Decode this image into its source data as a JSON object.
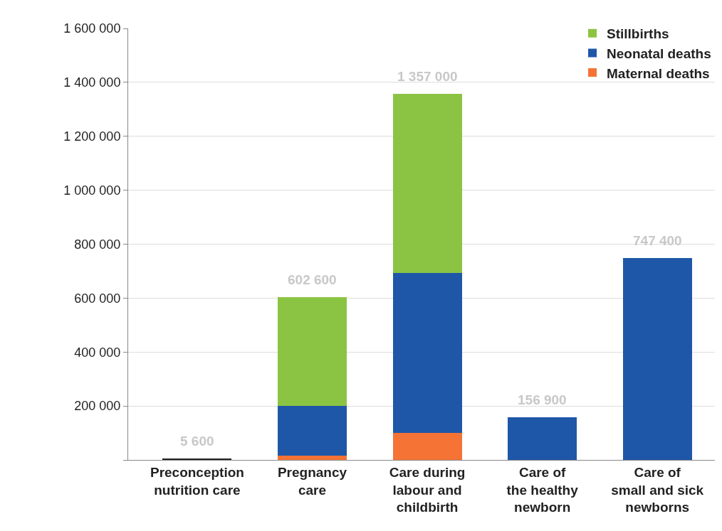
{
  "chart_data": {
    "type": "bar",
    "stacked": true,
    "categories": [
      "Preconception\nnutrition care",
      "Pregnancy\ncare",
      "Care during\nlabour and\nchildbirth",
      "Care of\nthe healthy\nnewborn",
      "Care of\nsmall and sick\nnewborns"
    ],
    "series": [
      {
        "color": "#222222",
        "values": [
          5600,
          null,
          null,
          null,
          null
        ]
      },
      {
        "name": "Maternal deaths",
        "color": "#f47335",
        "values": [
          null,
          16000,
          100000,
          null,
          null
        ]
      },
      {
        "name": "Neonatal deaths",
        "color": "#1f57a8",
        "values": [
          null,
          184000,
          594000,
          156900,
          747400
        ]
      },
      {
        "name": "Stillbirths",
        "color": "#8bc443",
        "values": [
          null,
          402600,
          663000,
          null,
          null
        ]
      }
    ],
    "totals": [
      "5 600",
      "602 600",
      "1 357 000",
      "156 900",
      "747 400"
    ],
    "ylim": [
      0,
      1600000
    ],
    "yticks": [
      {
        "value": 0,
        "label": null
      },
      {
        "value": 200000,
        "label": "200 000"
      },
      {
        "value": 400000,
        "label": "400 000"
      },
      {
        "value": 600000,
        "label": "600 000"
      },
      {
        "value": 800000,
        "label": "800 000"
      },
      {
        "value": 1000000,
        "label": "1 000 000"
      },
      {
        "value": 1200000,
        "label": "1 200 000"
      },
      {
        "value": 1400000,
        "label": "1 400 000"
      },
      {
        "value": 1600000,
        "label": "1 600 000"
      }
    ],
    "grid": "y",
    "legend": "top right"
  }
}
